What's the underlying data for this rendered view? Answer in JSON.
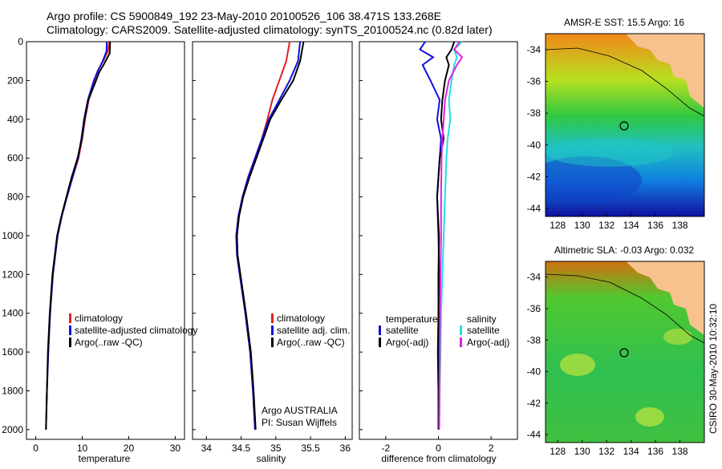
{
  "header": {
    "line1": "Argo profile: CS 5900849_192 23-May-2010 20100526_106 38.471S 133.268E",
    "line2": "Climatology: CARS2009. Satellite-adjusted climatology: synTS_20100524.nc (0.82d later)"
  },
  "side_label": "CSIRO 30-May-2010 10:32:10",
  "colors": {
    "climatology": "#e02020",
    "satellite": "#1010e0",
    "argo": "#000000",
    "sat_salinity": "#20e0e0",
    "argo_salinity": "#e020e0",
    "land": "#f7c28e",
    "marker": "#000000"
  },
  "chart_data": [
    {
      "type": "line",
      "panel": "temperature",
      "xlabel": "temperature",
      "ylabel": "",
      "xlim": [
        -2,
        32
      ],
      "ylim": [
        2050,
        0
      ],
      "xticks": [
        0,
        10,
        20,
        30
      ],
      "yticks": [
        0,
        200,
        400,
        600,
        800,
        1000,
        1200,
        1400,
        1600,
        1800,
        2000
      ],
      "legend": [
        "climatology",
        "satellite-adjusted climatology",
        "Argo(..raw -QC)"
      ],
      "legend_position": "lower-middle",
      "series": [
        {
          "name": "climatology",
          "color": "#e02020",
          "depth": [
            0,
            50,
            100,
            150,
            200,
            300,
            400,
            500,
            600,
            700,
            800,
            900,
            1000,
            1200,
            1400,
            1600,
            1800,
            1880
          ],
          "values": [
            15.8,
            15.5,
            14.5,
            13.3,
            12.6,
            11.4,
            10.6,
            10.0,
            9.2,
            7.9,
            6.7,
            5.6,
            4.7,
            3.7,
            3.1,
            2.7,
            2.4,
            2.3
          ]
        },
        {
          "name": "satellite",
          "color": "#1010e0",
          "depth": [
            0,
            50,
            100,
            150,
            200,
            300,
            400,
            500,
            600,
            700,
            800,
            900,
            1000,
            1200,
            1400,
            1600,
            1800,
            2000
          ],
          "values": [
            15.3,
            15.2,
            14.4,
            13.4,
            12.5,
            11.2,
            10.4,
            9.8,
            9.1,
            7.9,
            6.7,
            5.6,
            4.7,
            3.7,
            3.1,
            2.7,
            2.4,
            2.2
          ]
        },
        {
          "name": "Argo",
          "color": "#000000",
          "depth": [
            0,
            60,
            110,
            160,
            210,
            300,
            400,
            500,
            600,
            700,
            800,
            900,
            1000,
            1200,
            1400,
            1600,
            1800,
            2000
          ],
          "values": [
            16.0,
            15.9,
            14.8,
            13.6,
            12.8,
            11.3,
            10.5,
            9.9,
            9.0,
            7.7,
            6.6,
            5.5,
            4.6,
            3.6,
            3.0,
            2.6,
            2.4,
            2.2
          ]
        }
      ]
    },
    {
      "type": "line",
      "panel": "salinity",
      "xlabel": "salinity",
      "xlim": [
        33.8,
        36.1
      ],
      "ylim": [
        2050,
        0
      ],
      "xticks": [
        34,
        34.5,
        35,
        35.5,
        36
      ],
      "legend": [
        "climatology",
        "satellite adj. clim.",
        "Argo(..raw -QC)"
      ],
      "legend_position": "lower-right",
      "annotation": [
        "Argo AUSTRALIA",
        "PI: Susan Wijffels"
      ],
      "series": [
        {
          "name": "climatology",
          "color": "#e02020",
          "depth": [
            0,
            100,
            200,
            300,
            400,
            500,
            600,
            700,
            800,
            900,
            1000,
            1100,
            1200,
            1400,
            1600,
            1800,
            2000
          ],
          "values": [
            35.2,
            35.15,
            35.05,
            34.95,
            34.88,
            34.8,
            34.7,
            34.6,
            34.52,
            34.46,
            34.43,
            34.44,
            34.48,
            34.56,
            34.63,
            34.67,
            34.7
          ]
        },
        {
          "name": "satellite",
          "color": "#1010e0",
          "depth": [
            0,
            100,
            200,
            300,
            400,
            500,
            600,
            700,
            800,
            900,
            1000,
            1100,
            1200,
            1400,
            1600,
            1800,
            2000
          ],
          "values": [
            35.35,
            35.32,
            35.2,
            35.05,
            34.9,
            34.8,
            34.7,
            34.6,
            34.52,
            34.46,
            34.43,
            34.44,
            34.48,
            34.56,
            34.63,
            34.67,
            34.7
          ]
        },
        {
          "name": "Argo",
          "color": "#000000",
          "depth": [
            0,
            100,
            200,
            300,
            400,
            500,
            600,
            700,
            800,
            900,
            1000,
            1100,
            1200,
            1400,
            1600,
            1800,
            2000
          ],
          "values": [
            35.4,
            35.35,
            35.25,
            35.08,
            34.92,
            34.82,
            34.72,
            34.62,
            34.53,
            34.47,
            34.44,
            34.45,
            34.49,
            34.57,
            34.64,
            34.68,
            34.71
          ]
        }
      ]
    },
    {
      "type": "line",
      "panel": "difference",
      "xlabel": "difference from climatology",
      "xlim": [
        -3,
        3
      ],
      "ylim": [
        2050,
        0
      ],
      "xticks": [
        -2,
        0,
        2
      ],
      "legend_temperature": [
        "temperature",
        "satellite",
        "Argo(-adj)"
      ],
      "legend_salinity": [
        "salinity",
        "satellite",
        "Argo(-adj)"
      ],
      "series": [
        {
          "name": "satellite",
          "color": "#1010e0",
          "depth": [
            0,
            40,
            80,
            120,
            200,
            300,
            400,
            500,
            600,
            800,
            1000,
            1200,
            1400,
            1600,
            1800,
            2000
          ],
          "values": [
            -0.5,
            -0.7,
            -0.2,
            -0.6,
            -0.3,
            0.05,
            -0.05,
            0.1,
            0.05,
            -0.05,
            0.0,
            0.03,
            0.0,
            0.0,
            0.0,
            0.0
          ]
        },
        {
          "name": "Argo(-adj)",
          "color": "#000000",
          "depth": [
            0,
            40,
            80,
            120,
            200,
            300,
            400,
            500,
            600,
            800,
            1000,
            1200,
            1400,
            1600,
            1800,
            2000
          ],
          "values": [
            0.6,
            0.5,
            0.3,
            0.4,
            0.25,
            0.15,
            0.1,
            0.2,
            0.05,
            -0.05,
            0.02,
            0.0,
            0.0,
            -0.02,
            0.0,
            0.0
          ]
        },
        {
          "name": "satellite",
          "color": "#20e0e0",
          "depth": [
            0,
            40,
            80,
            120,
            200,
            300,
            400,
            500,
            600,
            800,
            1000,
            1200,
            1400,
            1600,
            1800,
            2000
          ],
          "values": [
            0.9,
            0.6,
            0.7,
            0.6,
            0.5,
            0.4,
            0.45,
            0.35,
            0.3,
            0.25,
            0.2,
            0.15,
            0.1,
            0.08,
            0.05,
            0.03
          ]
        },
        {
          "name": "Argo(-adj)",
          "color": "#e020e0",
          "depth": [
            0,
            40,
            80,
            120,
            200,
            300,
            400,
            500,
            600,
            800,
            1000,
            1200,
            1400,
            1600,
            1800,
            2000
          ],
          "values": [
            0.8,
            0.6,
            0.9,
            0.7,
            0.4,
            0.25,
            0.2,
            0.15,
            0.12,
            0.1,
            0.1,
            0.08,
            0.06,
            0.05,
            0.04,
            0.03
          ]
        }
      ]
    },
    {
      "type": "heatmap",
      "panel": "sst-map",
      "title": "AMSR-E SST: 15.5  Argo: 16",
      "xlim": [
        127,
        140
      ],
      "ylim": [
        -44.5,
        -33
      ],
      "xticks": [
        128,
        130,
        132,
        134,
        136,
        138
      ],
      "yticks": [
        -34,
        -36,
        -38,
        -40,
        -42,
        -44
      ],
      "marker": {
        "lon": 133.268,
        "lat": -38.471
      }
    },
    {
      "type": "heatmap",
      "panel": "sla-map",
      "title": "Altimetric SLA: -0.03  Argo: 0.032",
      "xlim": [
        127,
        140
      ],
      "ylim": [
        -44.5,
        -33
      ],
      "xticks": [
        128,
        130,
        132,
        134,
        136,
        138
      ],
      "yticks": [
        -34,
        -36,
        -38,
        -40,
        -42,
        -44
      ],
      "marker": {
        "lon": 133.268,
        "lat": -38.471
      }
    }
  ]
}
